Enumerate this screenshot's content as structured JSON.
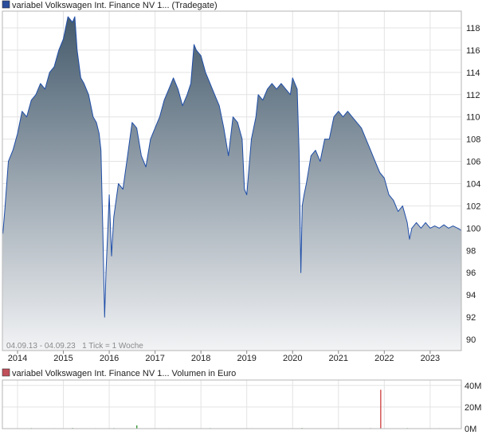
{
  "chart_data": [
    {
      "type": "area",
      "legend": "variabel Volkswagen Int. Finance NV 1... (Tradegate)",
      "legend_color": "#2a4d9c",
      "line_color": "#1f4ea8",
      "fill_top_color": "#445a6c",
      "fill_bottom_color": "#f2f3f5",
      "note": "04.09.13 - 04.09.23   1 Tick = 1 Woche",
      "x_tick_labels": [
        "2014",
        "2015",
        "2016",
        "2017",
        "2018",
        "2019",
        "2020",
        "2021",
        "2022",
        "2023"
      ],
      "xlim": [
        2013.67,
        2023.68
      ],
      "y_tick_labels": [
        "90",
        "92",
        "94",
        "96",
        "98",
        "100",
        "102",
        "104",
        "106",
        "108",
        "110",
        "112",
        "114",
        "116",
        "118"
      ],
      "y_ticks": [
        90,
        92,
        94,
        96,
        98,
        100,
        102,
        104,
        106,
        108,
        110,
        112,
        114,
        116,
        118
      ],
      "ylim": [
        89,
        119.5
      ],
      "grid": true,
      "x": [
        2013.68,
        2013.72,
        2013.8,
        2013.9,
        2014.0,
        2014.1,
        2014.2,
        2014.3,
        2014.4,
        2014.5,
        2014.6,
        2014.7,
        2014.8,
        2014.9,
        2015.0,
        2015.1,
        2015.2,
        2015.25,
        2015.3,
        2015.38,
        2015.45,
        2015.55,
        2015.65,
        2015.72,
        2015.78,
        2015.82,
        2015.86,
        2015.9,
        2015.93,
        2015.96,
        2016.0,
        2016.05,
        2016.1,
        2016.2,
        2016.3,
        2016.4,
        2016.5,
        2016.6,
        2016.7,
        2016.8,
        2016.9,
        2017.0,
        2017.1,
        2017.2,
        2017.3,
        2017.4,
        2017.5,
        2017.6,
        2017.7,
        2017.78,
        2017.85,
        2017.9,
        2018.0,
        2018.1,
        2018.2,
        2018.3,
        2018.4,
        2018.5,
        2018.6,
        2018.7,
        2018.8,
        2018.9,
        2018.95,
        2019.0,
        2019.1,
        2019.2,
        2019.25,
        2019.35,
        2019.45,
        2019.55,
        2019.65,
        2019.75,
        2019.85,
        2019.95,
        2020.0,
        2020.05,
        2020.1,
        2020.14,
        2020.18,
        2020.21,
        2020.25,
        2020.3,
        2020.4,
        2020.5,
        2020.6,
        2020.7,
        2020.8,
        2020.9,
        2021.0,
        2021.1,
        2021.2,
        2021.3,
        2021.4,
        2021.5,
        2021.6,
        2021.7,
        2021.8,
        2021.9,
        2022.0,
        2022.1,
        2022.2,
        2022.3,
        2022.4,
        2022.5,
        2022.55,
        2022.6,
        2022.7,
        2022.8,
        2022.9,
        2023.0,
        2023.1,
        2023.2,
        2023.3,
        2023.4,
        2023.5,
        2023.6,
        2023.68
      ],
      "y": [
        99.5,
        101.5,
        106.0,
        107.0,
        108.5,
        110.5,
        110.0,
        111.5,
        112.0,
        113.0,
        112.5,
        114.0,
        114.5,
        116.0,
        117.0,
        119.0,
        118.5,
        119.0,
        116.0,
        113.5,
        113.0,
        112.0,
        110.0,
        109.5,
        108.5,
        107.0,
        100.0,
        92.0,
        96.0,
        99.0,
        103.0,
        97.5,
        101.0,
        104.0,
        103.5,
        106.5,
        109.5,
        109.0,
        106.5,
        105.5,
        108.0,
        109.0,
        110.0,
        111.5,
        112.5,
        113.5,
        112.5,
        111.0,
        112.0,
        113.0,
        116.5,
        116.0,
        115.5,
        114.0,
        113.0,
        112.0,
        111.0,
        109.0,
        106.5,
        110.0,
        109.5,
        108.0,
        103.5,
        103.0,
        108.0,
        110.0,
        112.0,
        111.5,
        112.5,
        113.0,
        112.5,
        113.0,
        112.5,
        112.0,
        113.5,
        113.0,
        112.5,
        107.0,
        96.0,
        102.0,
        103.0,
        104.0,
        106.5,
        107.0,
        106.0,
        108.0,
        108.0,
        110.0,
        110.5,
        110.0,
        110.5,
        110.0,
        109.5,
        109.0,
        108.0,
        107.0,
        106.0,
        105.0,
        104.5,
        103.0,
        102.5,
        101.5,
        102.0,
        100.5,
        99.0,
        100.0,
        100.5,
        100.0,
        100.5,
        100.0,
        100.2,
        100.0,
        100.3,
        100.0,
        100.2,
        100.0,
        99.8
      ]
    },
    {
      "type": "bar",
      "legend": "variabel Volkswagen Int. Finance NV 1... Volumen in Euro",
      "legend_color": "#c0505a",
      "y_tick_labels": [
        "40M",
        "20M",
        "0M"
      ],
      "y_ticks": [
        40,
        20,
        0
      ],
      "ylim": [
        0,
        45
      ],
      "grid": true,
      "bars": [
        {
          "x": 2014.3,
          "value": 0.5,
          "color": "#3a9a3a"
        },
        {
          "x": 2014.8,
          "value": 0.4,
          "color": "#3a9a3a"
        },
        {
          "x": 2015.2,
          "value": 0.6,
          "color": "#3a9a3a"
        },
        {
          "x": 2015.7,
          "value": 0.4,
          "color": "#3a9a3a"
        },
        {
          "x": 2016.1,
          "value": 0.5,
          "color": "#3a9a3a"
        },
        {
          "x": 2016.6,
          "value": 3.0,
          "color": "#3a9a3a"
        },
        {
          "x": 2017.3,
          "value": 0.4,
          "color": "#3a9a3a"
        },
        {
          "x": 2018.2,
          "value": 0.5,
          "color": "#3a9a3a"
        },
        {
          "x": 2019.1,
          "value": 0.4,
          "color": "#3a9a3a"
        },
        {
          "x": 2020.2,
          "value": 0.6,
          "color": "#3a9a3a"
        },
        {
          "x": 2021.0,
          "value": 0.4,
          "color": "#3a9a3a"
        },
        {
          "x": 2021.7,
          "value": 0.5,
          "color": "#3a9a3a"
        },
        {
          "x": 2021.92,
          "value": 36.0,
          "color": "#d04a4a"
        },
        {
          "x": 2022.5,
          "value": 0.5,
          "color": "#3a9a3a"
        },
        {
          "x": 2023.2,
          "value": 0.4,
          "color": "#3a9a3a"
        }
      ]
    }
  ]
}
